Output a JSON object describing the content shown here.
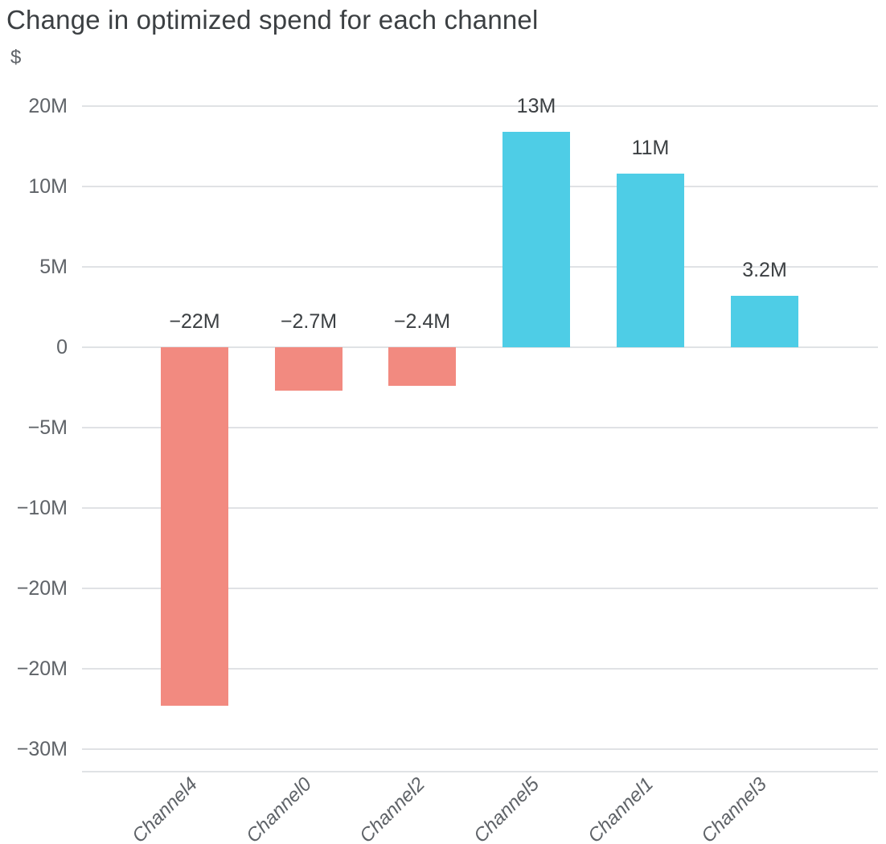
{
  "chart": {
    "title": "Change in optimized spend for each channel",
    "y_axis_unit": "$"
  },
  "chart_data": {
    "type": "bar",
    "title": "Change in optimized spend for each channel",
    "ylabel": "$",
    "xlabel": "",
    "unit": "USD millions",
    "categories": [
      "Channel4",
      "Channel0",
      "Channel2",
      "Channel5",
      "Channel1",
      "Channel3"
    ],
    "values": [
      -22.3,
      -2.7,
      -2.4,
      13.4,
      10.8,
      3.2
    ],
    "value_labels": [
      "−22M",
      "−2.7M",
      "−2.4M",
      "13M",
      "11M",
      "3.2M"
    ],
    "bar_signs": [
      "negative",
      "negative",
      "negative",
      "positive",
      "positive",
      "positive"
    ],
    "y_ticks": {
      "values": [
        15,
        10,
        5,
        0,
        -5,
        -10,
        -15,
        -20,
        -25
      ],
      "labels": [
        "20M",
        "10M",
        "5M",
        "0",
        "−5M",
        "−10M",
        "−20M",
        "−20M",
        "−30M"
      ]
    },
    "ylim": [
      -26.5,
      16.6
    ],
    "grid": true,
    "legend_position": "none",
    "orientation": "vertical",
    "colors": {
      "positive_bar": "#4ECDE6",
      "negative_bar": "#F28A80",
      "title_text": "#3C4043",
      "value_label_text": "#3C4043",
      "axis_text": "#5F6368",
      "gridline": "#E0E2E5",
      "background": "#FFFFFF"
    }
  }
}
